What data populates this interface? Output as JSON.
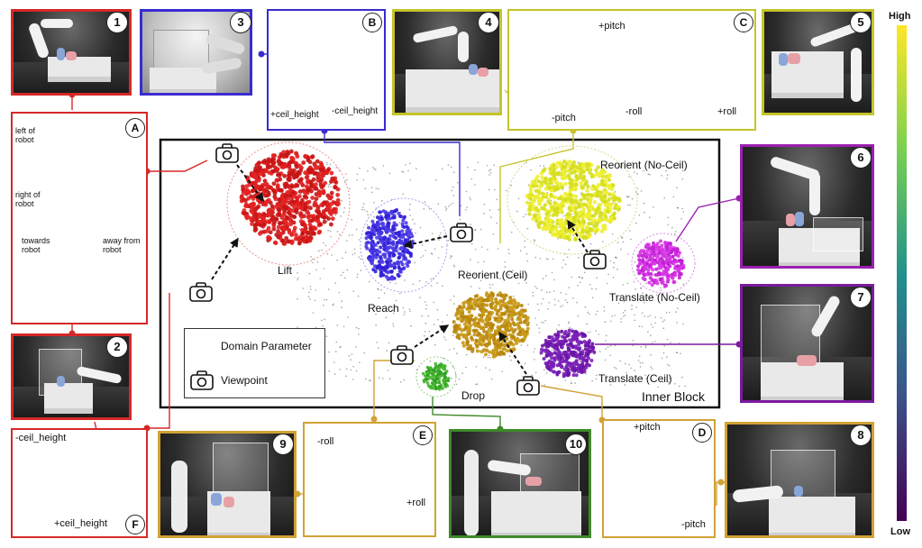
{
  "colorbar": {
    "high": "High",
    "low": "Low"
  },
  "clusters": {
    "lift": "Lift",
    "reach": "Reach",
    "reorient_ceil": "Reorient (Ceil)",
    "reorient_no_ceil": "Reorient (No-Ceil)",
    "translate_no_ceil": "Translate (No-Ceil)",
    "translate_ceil": "Translate (Ceil)",
    "drop": "Drop"
  },
  "inner_block": "Inner Block",
  "legend": {
    "domain_parameter": "Domain Parameter",
    "viewpoint": "Viewpoint"
  },
  "photos": [
    "1",
    "2",
    "3",
    "4",
    "5",
    "6",
    "7",
    "8",
    "9",
    "10"
  ],
  "panels": {
    "A": {
      "id": "A",
      "left_of_robot": "left of robot",
      "right_of_robot": "right of robot",
      "towards_robot": "towards robot",
      "away_from_robot": "away from robot"
    },
    "B": {
      "id": "B",
      "plus": "+ceil_height",
      "minus": "-ceil_height"
    },
    "C": {
      "id": "C",
      "plus_pitch": "+pitch",
      "minus_pitch": "-pitch",
      "minus_roll": "-roll",
      "plus_roll": "+roll"
    },
    "D": {
      "id": "D",
      "plus_pitch": "+pitch",
      "minus_pitch": "-pitch"
    },
    "E": {
      "id": "E",
      "minus_roll": "-roll",
      "plus_roll": "+roll"
    },
    "F": {
      "id": "F",
      "minus": "-ceil_height",
      "plus": "+ceil_height"
    }
  },
  "colors": {
    "red": "#d62828",
    "blue": "#3a2bd1",
    "olive": "#c6c42a",
    "purple": "#9b1fb0",
    "gold": "#d1a235",
    "green": "#3f8a2a"
  }
}
